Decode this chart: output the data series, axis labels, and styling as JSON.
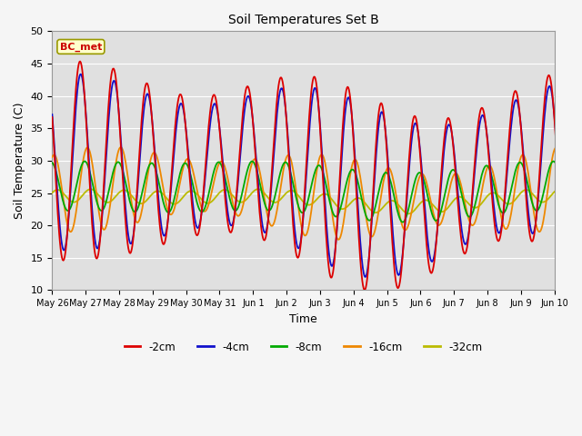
{
  "title": "Soil Temperatures Set B",
  "xlabel": "Time",
  "ylabel": "Soil Temperature (C)",
  "ylim": [
    10,
    50
  ],
  "annotation": "BC_met",
  "series_labels": [
    "-2cm",
    "-4cm",
    "-8cm",
    "-16cm",
    "-32cm"
  ],
  "series_colors": [
    "#dd0000",
    "#1111cc",
    "#00aa00",
    "#ee8800",
    "#bbbb00"
  ],
  "background_color": "#e0e0e0",
  "fig_color": "#f5f5f5",
  "grid_color": "#ffffff",
  "tick_labels": [
    "May 26",
    "May 27",
    "May 28",
    "May 29",
    "May 30",
    "May 31",
    "Jun 1",
    "Jun 2",
    "Jun 3",
    "Jun 4",
    "Jun 5",
    "Jun 6",
    "Jun 7",
    "Jun 8",
    "Jun 9",
    "Jun 10"
  ],
  "n_days": 16,
  "figsize": [
    6.4,
    4.8
  ],
  "dpi": 100
}
